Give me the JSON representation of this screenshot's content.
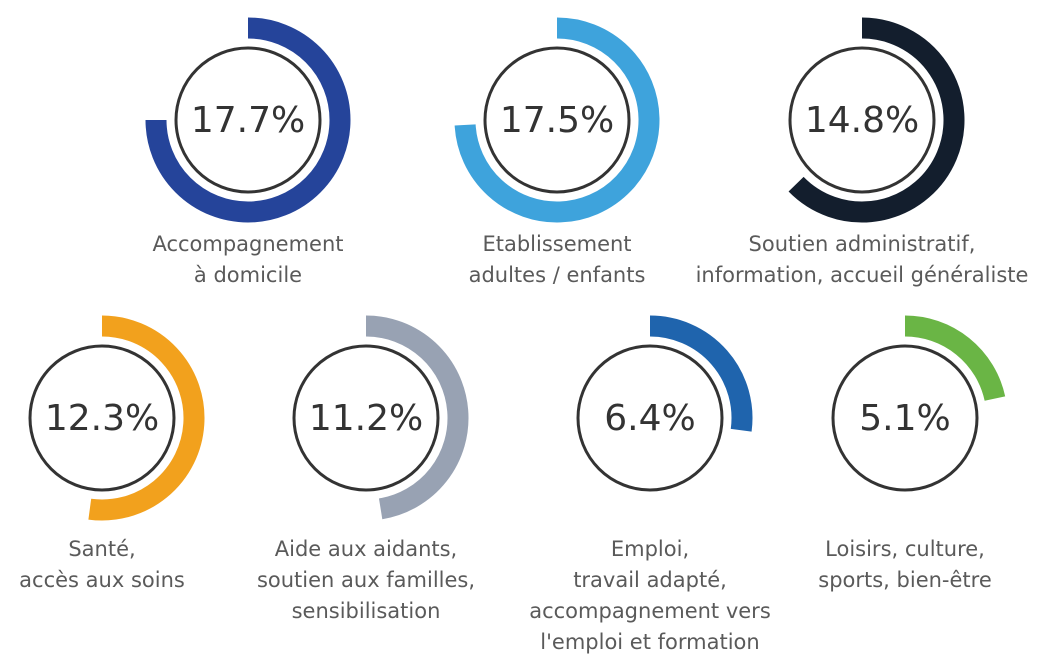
{
  "chart_data": {
    "type": "radial-bar",
    "categories": [
      [
        "Accompagnement",
        "à domicile"
      ],
      [
        "Etablissement",
        "adultes / enfants"
      ],
      [
        "Soutien administratif,",
        "information, accueil généraliste"
      ],
      [
        "Santé,",
        "accès aux soins"
      ],
      [
        "Aide aux aidants,",
        "soutien aux familles,",
        "sensibilisation"
      ],
      [
        "Emploi,",
        "travail adapté,",
        "accompagnement vers",
        "l'emploi et formation"
      ],
      [
        "Loisirs, culture,",
        "sports, bien-être"
      ]
    ],
    "values": [
      17.7,
      17.5,
      14.8,
      12.3,
      11.2,
      6.4,
      5.1
    ],
    "value_labels": [
      "17.7%",
      "17.5%",
      "14.8%",
      "12.3%",
      "11.2%",
      "6.4%",
      "5.1%"
    ],
    "colors": [
      "#25449a",
      "#3ea3dc",
      "#131e2d",
      "#f2a11d",
      "#98a2b3",
      "#1f64ad",
      "#6ab545"
    ]
  }
}
